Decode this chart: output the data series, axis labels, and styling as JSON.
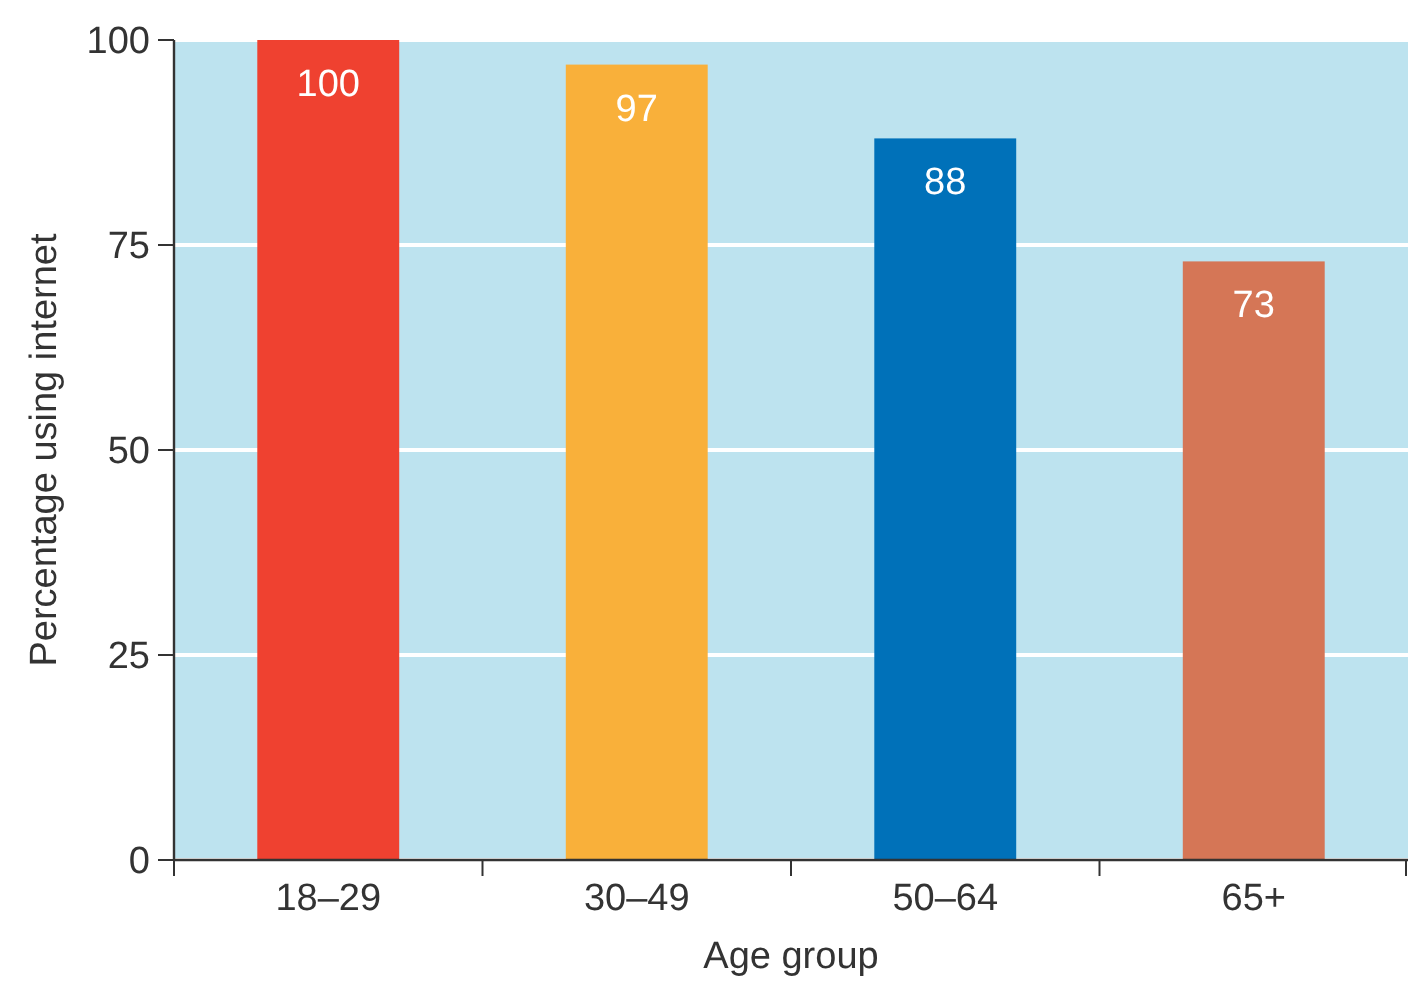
{
  "chart_data": {
    "type": "bar",
    "xlabel": "Age group",
    "ylabel": "Percentage using internet",
    "categories": [
      "18–29",
      "30–49",
      "50–64",
      "65+"
    ],
    "values": [
      100,
      97,
      88,
      73
    ],
    "colors": [
      "#ef4130",
      "#f9b03a",
      "#0071b9",
      "#d57656"
    ],
    "ylim": [
      0,
      100
    ],
    "yticks": [
      0,
      25,
      50,
      75,
      100
    ],
    "grid": "y",
    "data_labels": true
  }
}
